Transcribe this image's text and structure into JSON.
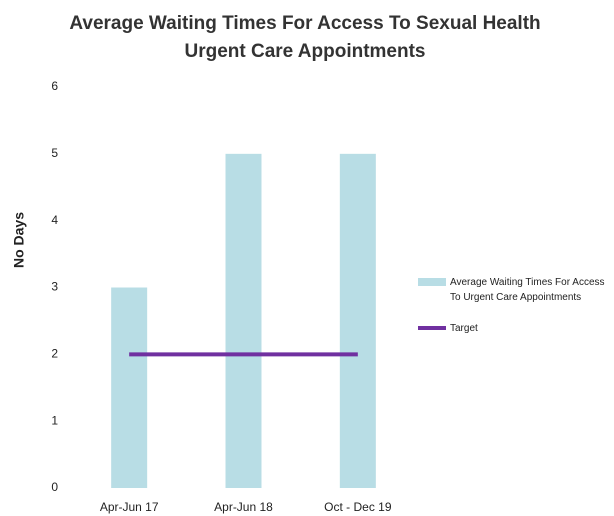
{
  "chart_data": {
    "type": "bar",
    "title": "Average Waiting Times For Access To Sexual Health Urgent Care Appointments",
    "y_label": "No Days",
    "categories": [
      "Apr-Jun 17",
      "Apr-Jun 18",
      "Oct - Dec 19"
    ],
    "series": [
      {
        "name": "Average Waiting Times For Access To Urgent Care Appointments",
        "type": "bar",
        "color": "#b8dde5",
        "values": [
          3,
          5,
          5
        ]
      },
      {
        "name": "Target",
        "type": "line",
        "color": "#7030a0",
        "values": [
          2,
          2,
          2
        ]
      }
    ],
    "ylim": [
      0,
      6
    ],
    "yticks": [
      0,
      1,
      2,
      3,
      4,
      5,
      6
    ],
    "grid": false,
    "legend": "right"
  }
}
